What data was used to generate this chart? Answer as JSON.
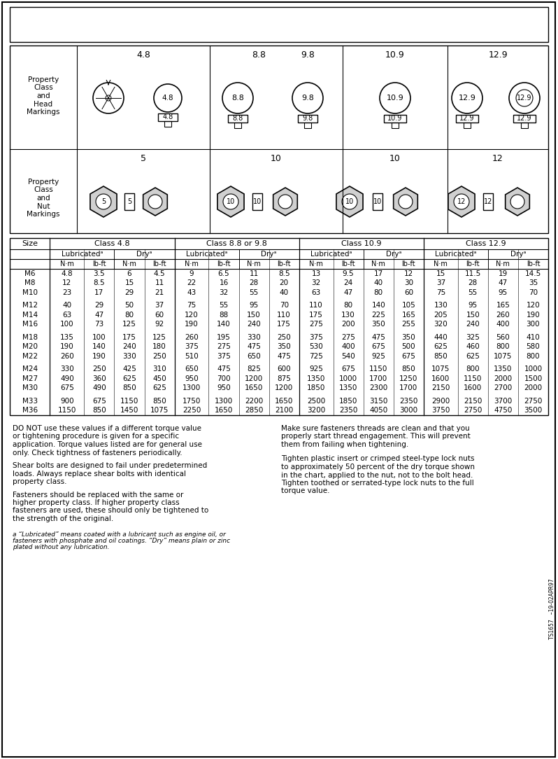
{
  "bg_color": "#ffffff",
  "sizes": [
    "M6",
    "M8",
    "M10",
    "",
    "M12",
    "M14",
    "M16",
    "",
    "M18",
    "M20",
    "M22",
    "",
    "M24",
    "M27",
    "M30",
    "",
    "M33",
    "M36"
  ],
  "data": [
    [
      "4.8",
      "3.5",
      "6",
      "4.5",
      "9",
      "6.5",
      "11",
      "8.5",
      "13",
      "9.5",
      "17",
      "12",
      "15",
      "11.5",
      "19",
      "14.5"
    ],
    [
      "12",
      "8.5",
      "15",
      "11",
      "22",
      "16",
      "28",
      "20",
      "32",
      "24",
      "40",
      "30",
      "37",
      "28",
      "47",
      "35"
    ],
    [
      "23",
      "17",
      "29",
      "21",
      "43",
      "32",
      "55",
      "40",
      "63",
      "47",
      "80",
      "60",
      "75",
      "55",
      "95",
      "70"
    ],
    [
      "",
      "",
      "",
      "",
      "",
      "",
      "",
      "",
      "",
      "",
      "",
      "",
      "",
      "",
      "",
      ""
    ],
    [
      "40",
      "29",
      "50",
      "37",
      "75",
      "55",
      "95",
      "70",
      "110",
      "80",
      "140",
      "105",
      "130",
      "95",
      "165",
      "120"
    ],
    [
      "63",
      "47",
      "80",
      "60",
      "120",
      "88",
      "150",
      "110",
      "175",
      "130",
      "225",
      "165",
      "205",
      "150",
      "260",
      "190"
    ],
    [
      "100",
      "73",
      "125",
      "92",
      "190",
      "140",
      "240",
      "175",
      "275",
      "200",
      "350",
      "255",
      "320",
      "240",
      "400",
      "300"
    ],
    [
      "",
      "",
      "",
      "",
      "",
      "",
      "",
      "",
      "",
      "",
      "",
      "",
      "",
      "",
      "",
      ""
    ],
    [
      "135",
      "100",
      "175",
      "125",
      "260",
      "195",
      "330",
      "250",
      "375",
      "275",
      "475",
      "350",
      "440",
      "325",
      "560",
      "410"
    ],
    [
      "190",
      "140",
      "240",
      "180",
      "375",
      "275",
      "475",
      "350",
      "530",
      "400",
      "675",
      "500",
      "625",
      "460",
      "800",
      "580"
    ],
    [
      "260",
      "190",
      "330",
      "250",
      "510",
      "375",
      "650",
      "475",
      "725",
      "540",
      "925",
      "675",
      "850",
      "625",
      "1075",
      "800"
    ],
    [
      "",
      "",
      "",
      "",
      "",
      "",
      "",
      "",
      "",
      "",
      "",
      "",
      "",
      "",
      "",
      ""
    ],
    [
      "330",
      "250",
      "425",
      "310",
      "650",
      "475",
      "825",
      "600",
      "925",
      "675",
      "1150",
      "850",
      "1075",
      "800",
      "1350",
      "1000"
    ],
    [
      "490",
      "360",
      "625",
      "450",
      "950",
      "700",
      "1200",
      "875",
      "1350",
      "1000",
      "1700",
      "1250",
      "1600",
      "1150",
      "2000",
      "1500"
    ],
    [
      "675",
      "490",
      "850",
      "625",
      "1300",
      "950",
      "1650",
      "1200",
      "1850",
      "1350",
      "2300",
      "1700",
      "2150",
      "1600",
      "2700",
      "2000"
    ],
    [
      "",
      "",
      "",
      "",
      "",
      "",
      "",
      "",
      "",
      "",
      "",
      "",
      "",
      "",
      "",
      ""
    ],
    [
      "900",
      "675",
      "1150",
      "850",
      "1750",
      "1300",
      "2200",
      "1650",
      "2500",
      "1850",
      "3150",
      "2350",
      "2900",
      "2150",
      "3700",
      "2750"
    ],
    [
      "1150",
      "850",
      "1450",
      "1075",
      "2250",
      "1650",
      "2850",
      "2100",
      "3200",
      "2350",
      "4050",
      "3000",
      "3750",
      "2750",
      "4750",
      "3500"
    ]
  ],
  "footnote": "a “Lubricated” means coated with a lubricant such as engine oil, or\nfasteners with phosphate and oil coatings. “Dry” means plain or zinc\nplated without any lubrication.",
  "left_notes": [
    "DO NOT use these values if a different torque value\nor tightening procedure is given for a specific\napplication. Torque values listed are for general use\nonly. Check tightness of fasteners periodically.",
    "Shear bolts are designed to fail under predetermined\nloads. Always replace shear bolts with identical\nproperty class.",
    "Fasteners should be replaced with the same or\nhigher property class. If higher property class\nfasteners are used, these should only be tightened to\nthe strength of the original."
  ],
  "right_notes": [
    "Make sure fasteners threads are clean and that you\nproperly start thread engagement. This will prevent\nthem from failing when tightening.",
    "Tighten plastic insert or crimped steel-type lock nuts\nto approximately 50 percent of the dry torque shown\nin the chart, applied to the nut, not to the bolt head.\nTighten toothed or serrated-type lock nuts to the full\ntorque value."
  ],
  "side_text": "TS1657   –19-02APR97"
}
